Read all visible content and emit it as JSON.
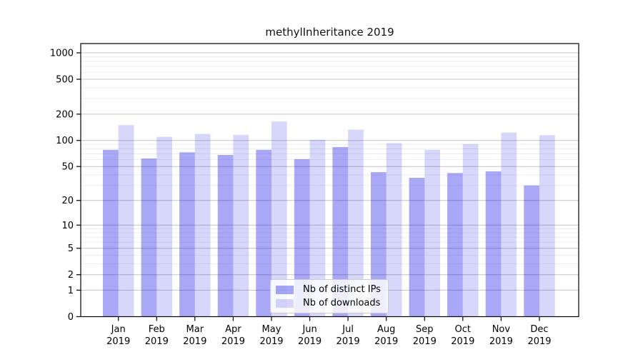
{
  "title": "methylInheritance 2019",
  "legend": {
    "items": [
      {
        "label": "Nb of distinct IPs",
        "color": "rgba(0,0,230,0.34)"
      },
      {
        "label": "Nb of downloads",
        "color": "rgba(0,0,230,0.155)"
      }
    ]
  },
  "y_axis": {
    "tick_labels": [
      "1000",
      "500",
      "200",
      "100",
      "50",
      "20",
      "10",
      "5",
      "2",
      "1",
      "0"
    ],
    "tick_values": [
      1000,
      500,
      200,
      100,
      50,
      20,
      10,
      5,
      2,
      1,
      0
    ],
    "minor_values": [
      3,
      4,
      6,
      7,
      8,
      9,
      30,
      40,
      60,
      70,
      80,
      90,
      300,
      400,
      600,
      700,
      800,
      900
    ]
  },
  "chart_data": {
    "type": "bar",
    "title": "methylInheritance 2019",
    "categories": [
      "Jan 2019",
      "Feb 2019",
      "Mar 2019",
      "Apr 2019",
      "May 2019",
      "Jun 2019",
      "Jul 2019",
      "Aug 2019",
      "Sep 2019",
      "Oct 2019",
      "Nov 2019",
      "Dec 2019"
    ],
    "series": [
      {
        "name": "Nb of distinct IPs",
        "values": [
          78,
          62,
          73,
          68,
          78,
          61,
          84,
          43,
          37,
          42,
          44,
          30
        ]
      },
      {
        "name": "Nb of downloads",
        "values": [
          150,
          110,
          119,
          116,
          165,
          102,
          133,
          93,
          78,
          91,
          123,
          115
        ]
      }
    ],
    "xlabel": "",
    "ylabel": "",
    "yscale": "log10(value+1)",
    "ylim": [
      0,
      1280
    ],
    "grid": true,
    "legend_position": "bottom-center-inside"
  },
  "colors": {
    "major_gridline": "#c4c4c4",
    "minor_gridline": "#ededed",
    "axis": "#000000"
  }
}
